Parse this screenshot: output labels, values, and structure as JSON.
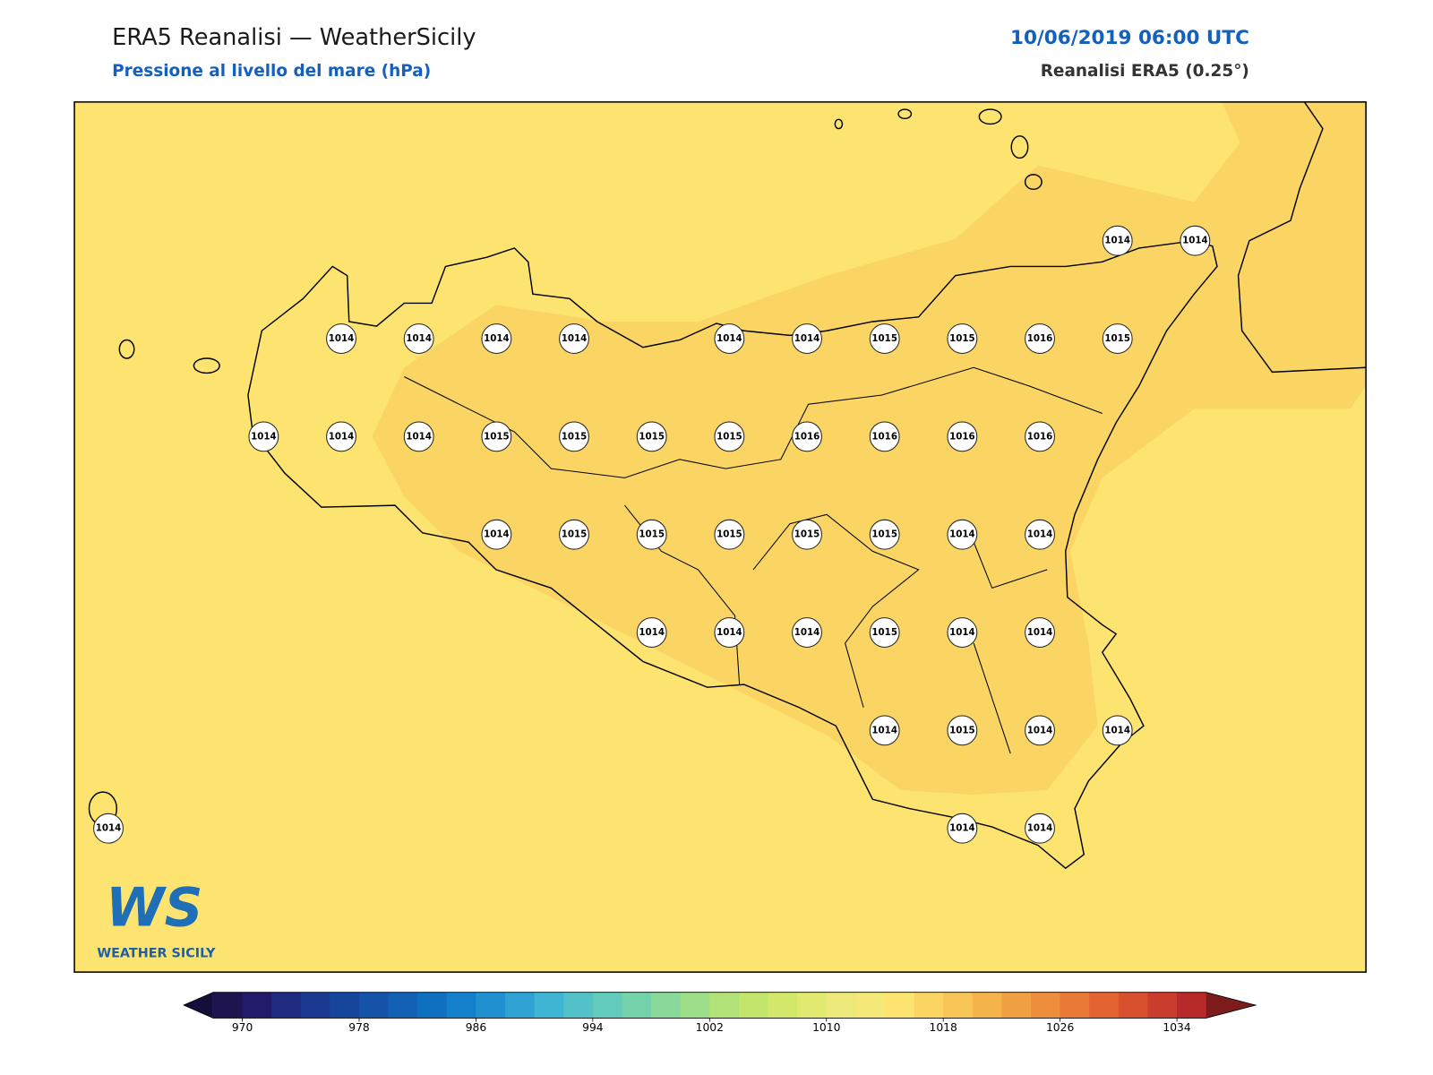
{
  "header": {
    "title": "ERA5 Reanalisi — WeatherSicily",
    "subtitle": "Pressione al livello del mare (hPa)",
    "datetime": "10/06/2019 06:00 UTC",
    "source": "Reanalisi ERA5 (0.25°)"
  },
  "stations": {
    "rows": [
      [
        null,
        null,
        null,
        null,
        null,
        null,
        null,
        null,
        null,
        null,
        null,
        null,
        null,
        1014,
        1014
      ],
      [
        null,
        null,
        null,
        1014,
        1014,
        1014,
        1014,
        null,
        1014,
        1014,
        1015,
        1015,
        1016,
        1015,
        null
      ],
      [
        null,
        null,
        1014,
        1014,
        1014,
        1015,
        1015,
        1015,
        1015,
        1016,
        1016,
        1016,
        1016,
        null,
        null
      ],
      [
        null,
        null,
        null,
        null,
        null,
        1014,
        1015,
        1015,
        1015,
        1015,
        1015,
        1014,
        1014,
        null,
        null
      ],
      [
        null,
        null,
        null,
        null,
        null,
        null,
        null,
        1014,
        1014,
        1014,
        1015,
        1014,
        1014,
        null,
        null
      ],
      [
        null,
        null,
        null,
        null,
        null,
        null,
        null,
        null,
        null,
        null,
        1014,
        1015,
        1014,
        1014,
        null
      ],
      [
        1014,
        null,
        null,
        null,
        null,
        null,
        null,
        null,
        null,
        null,
        null,
        1014,
        1014,
        null,
        null
      ]
    ]
  },
  "colorbar": {
    "clim": [
      968,
      1036
    ],
    "ticks": [
      970,
      978,
      986,
      994,
      1002,
      1010,
      1018,
      1026,
      1034
    ],
    "colors": [
      "#1e1450",
      "#221a6a",
      "#1f2a80",
      "#1a3990",
      "#16469c",
      "#1453a8",
      "#1261b5",
      "#0f70c2",
      "#1480cb",
      "#2090d0",
      "#2ea2d3",
      "#3eb5d2",
      "#52c2c8",
      "#62cbbb",
      "#74d2ab",
      "#88d99a",
      "#9ddf89",
      "#b0e278",
      "#c2e56c",
      "#d3e76a",
      "#e2e970",
      "#ece97a",
      "#f3e878",
      "#fde470",
      "#fad564",
      "#f7c555",
      "#f4b34b",
      "#f1a044",
      "#ee8d3c",
      "#ea7836",
      "#e36431",
      "#d9502e",
      "#ca3c2c",
      "#b82a2a"
    ],
    "under_color": "#140e3c",
    "over_color": "#7e1c1c"
  },
  "logo": {
    "text": "WS",
    "caption": "WEATHER SICILY"
  }
}
